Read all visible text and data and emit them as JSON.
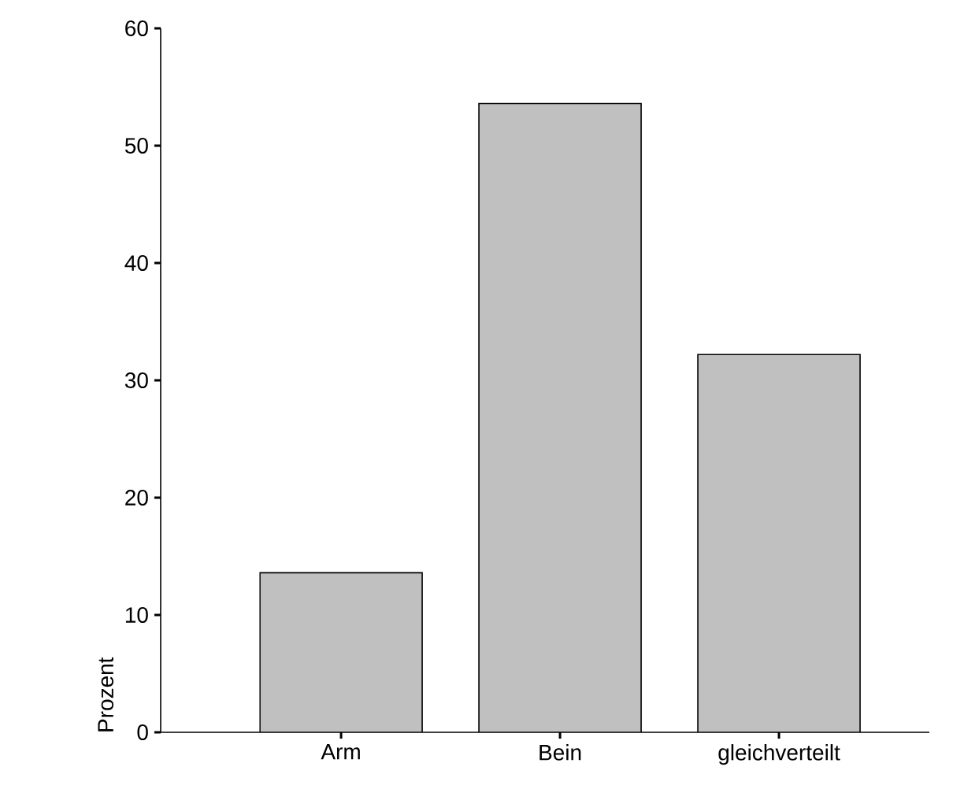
{
  "chart_data": {
    "type": "bar",
    "ylabel": "Prozent",
    "categories": [
      "Arm",
      "Bein",
      "gleichverteilt"
    ],
    "values": [
      13.6,
      53.6,
      32.2
    ],
    "color": "#c0c0c0",
    "ylim": [
      0,
      60
    ],
    "yticks": [
      0,
      10,
      20,
      30,
      40,
      50,
      60
    ]
  }
}
